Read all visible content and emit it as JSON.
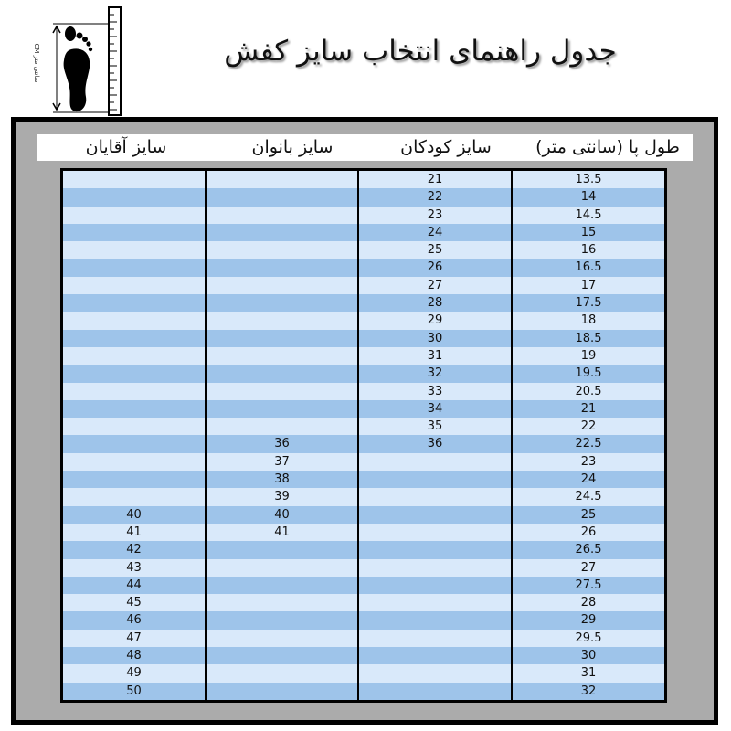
{
  "title": "جدول راهنمای انتخاب سایز کفش",
  "icon": {
    "name": "foot-ruler-icon",
    "label": "CM سانتی متر"
  },
  "headers": [
    "طول پا (سانتی متر)",
    "سایز کودکان",
    "سایز بانوان",
    "سایز آقایان"
  ],
  "colors": {
    "row_light": "#d9e9fa",
    "row_dark": "#9ec4ea",
    "frame": "#ababab"
  },
  "rows": [
    [
      "13.5",
      "21",
      "",
      ""
    ],
    [
      "14",
      "22",
      "",
      ""
    ],
    [
      "14.5",
      "23",
      "",
      ""
    ],
    [
      "15",
      "24",
      "",
      ""
    ],
    [
      "16",
      "25",
      "",
      ""
    ],
    [
      "16.5",
      "26",
      "",
      ""
    ],
    [
      "17",
      "27",
      "",
      ""
    ],
    [
      "17.5",
      "28",
      "",
      ""
    ],
    [
      "18",
      "29",
      "",
      ""
    ],
    [
      "18.5",
      "30",
      "",
      ""
    ],
    [
      "19",
      "31",
      "",
      ""
    ],
    [
      "19.5",
      "32",
      "",
      ""
    ],
    [
      "20.5",
      "33",
      "",
      ""
    ],
    [
      "21",
      "34",
      "",
      ""
    ],
    [
      "22",
      "35",
      "",
      ""
    ],
    [
      "22.5",
      "36",
      "36",
      ""
    ],
    [
      "23",
      "",
      "37",
      ""
    ],
    [
      "24",
      "",
      "38",
      ""
    ],
    [
      "24.5",
      "",
      "39",
      ""
    ],
    [
      "25",
      "",
      "40",
      "40"
    ],
    [
      "26",
      "",
      "41",
      "41"
    ],
    [
      "26.5",
      "",
      "",
      "42"
    ],
    [
      "27",
      "",
      "",
      "43"
    ],
    [
      "27.5",
      "",
      "",
      "44"
    ],
    [
      "28",
      "",
      "",
      "45"
    ],
    [
      "29",
      "",
      "",
      "46"
    ],
    [
      "29.5",
      "",
      "",
      "47"
    ],
    [
      "30",
      "",
      "",
      "48"
    ],
    [
      "31",
      "",
      "",
      "49"
    ],
    [
      "32",
      "",
      "",
      "50"
    ]
  ]
}
